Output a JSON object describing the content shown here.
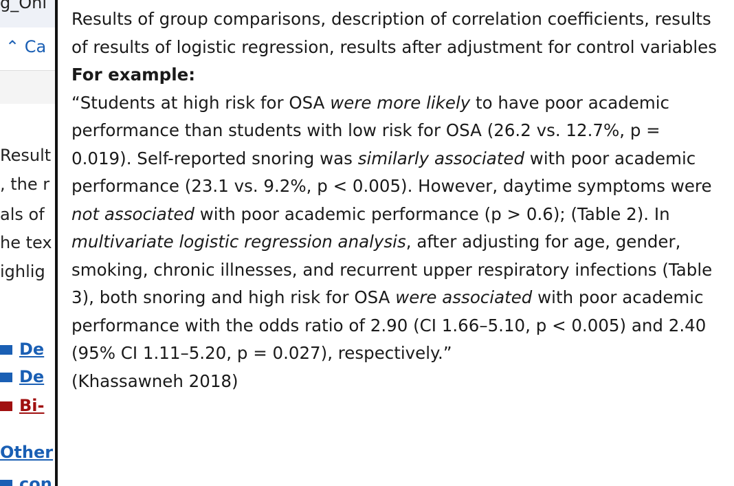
{
  "background": {
    "tab_title": "g_Onl",
    "nav_label": "Ca",
    "lines": [
      "Result",
      ", the r",
      "als of",
      "he tex",
      "ighlig"
    ],
    "links": [
      {
        "text": "De",
        "color": "#1a5fb4"
      },
      {
        "text": "De",
        "color": "#1a5fb4"
      },
      {
        "text": "Bi-",
        "color": "#a01010"
      }
    ],
    "section_link": "Other",
    "last_link": "con"
  },
  "tooltip": {
    "intro": "Results of group comparisons, description of correlation coefficients, results of results of logistic regression, results after adjustment for control variables",
    "heading": "For example:",
    "quote": [
      {
        "text": "“Students at high risk for OSA ",
        "italic": false
      },
      {
        "text": "were more likely",
        "italic": true
      },
      {
        "text": " to have poor academic performance than students with low risk for OSA (26.2 vs. 12.7%, p = 0.019). Self-reported snoring was ",
        "italic": false
      },
      {
        "text": "similarly associated",
        "italic": true
      },
      {
        "text": " with poor academic performance (23.1 vs. 9.2%, p < 0.005). However, daytime symptoms were ",
        "italic": false
      },
      {
        "text": "not associated",
        "italic": true
      },
      {
        "text": " with poor academic performance (p > 0.6); (Table 2). In ",
        "italic": false
      },
      {
        "text": "multivariate logistic regression analysis",
        "italic": true
      },
      {
        "text": ", after adjusting for age, gender, smoking, chronic illnesses, and recurrent upper respiratory infections (Table 3), both snoring and high risk for OSA ",
        "italic": false
      },
      {
        "text": "were associated",
        "italic": true
      },
      {
        "text": " with poor academic performance with the odds ratio of 2.90 (CI 1.66–5.10, p < 0.005) and 2.40 (95% CI 1.11–5.20, p = 0.027), respectively.”",
        "italic": false
      }
    ],
    "citation": "(Khassawneh 2018)"
  }
}
